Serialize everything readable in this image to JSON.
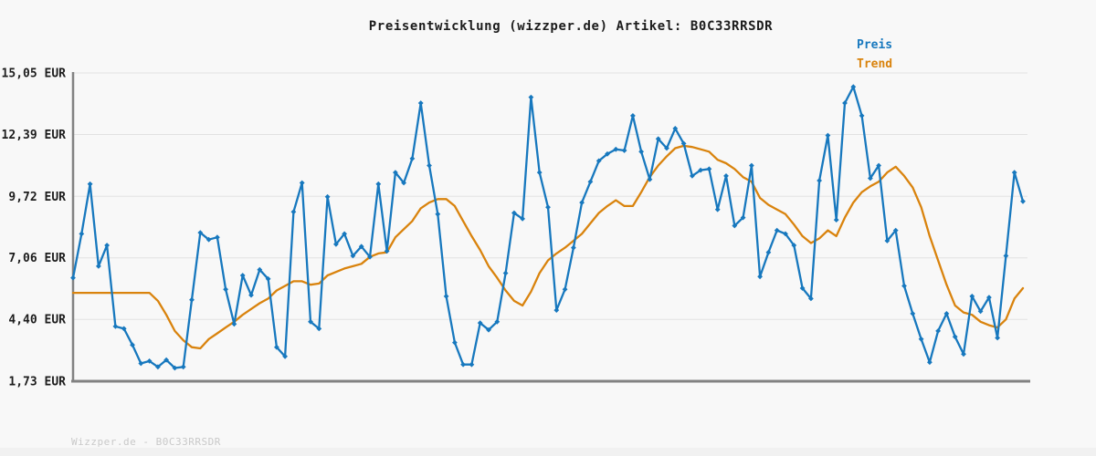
{
  "title": "Preisentwicklung (wizzper.de) Artikel: B0C33RRSDR",
  "legend": {
    "preis_label": "Preis",
    "trend_label": "Trend"
  },
  "footer": "Wizzper.de - B0C33RRSDR",
  "colors": {
    "background": "#f8f8f8",
    "preis": "#1778be",
    "trend": "#d9830d",
    "grid": "#e2e2e2",
    "axis": "#828282",
    "title_text": "#1c1c1c",
    "tick_text": "#1c1c1c",
    "footer_text": "#c9c9c9"
  },
  "chart_data": {
    "type": "line",
    "title": "Preisentwicklung (wizzper.de) Artikel: B0C33RRSDR",
    "xlabel": "",
    "ylabel": "EUR",
    "ylim": [
      1.73,
      15.05
    ],
    "grid": "horizontal",
    "legend_position": "top-right",
    "x_tick_labels": [],
    "y_ticks": [
      "15,05 EUR",
      "12,39 EUR",
      "9,72 EUR",
      "7,06 EUR",
      "4,40 EUR",
      "1,73 EUR"
    ],
    "y_tick_values": [
      15.05,
      12.39,
      9.72,
      7.06,
      4.4,
      1.73
    ],
    "series": [
      {
        "name": "Preis",
        "color": "#1778be",
        "marker": "diamond",
        "values": [
          6.2,
          8.1,
          10.25,
          6.7,
          7.6,
          4.1,
          4.0,
          3.3,
          2.5,
          2.6,
          2.35,
          2.65,
          2.3,
          2.35,
          5.25,
          8.15,
          7.85,
          7.95,
          5.7,
          4.2,
          6.3,
          5.45,
          6.55,
          6.15,
          3.2,
          2.8,
          9.05,
          10.3,
          4.3,
          4.0,
          9.7,
          7.65,
          8.1,
          7.15,
          7.55,
          7.1,
          10.25,
          7.35,
          10.75,
          10.3,
          11.35,
          13.75,
          11.05,
          8.95,
          5.4,
          3.4,
          2.45,
          2.45,
          4.25,
          3.95,
          4.3,
          6.4,
          9.0,
          8.75,
          14.0,
          10.75,
          9.25,
          4.8,
          5.7,
          7.5,
          9.45,
          10.35,
          11.25,
          11.55,
          11.75,
          11.7,
          13.2,
          11.65,
          10.45,
          12.2,
          11.8,
          12.65,
          12.0,
          10.6,
          10.85,
          10.9,
          9.15,
          10.6,
          8.45,
          8.8,
          11.05,
          6.25,
          7.3,
          8.25,
          8.1,
          7.6,
          5.75,
          5.3,
          10.4,
          12.35,
          8.7,
          13.75,
          14.45,
          13.2,
          10.5,
          11.05,
          7.8,
          8.25,
          5.85,
          4.65,
          3.55,
          2.55,
          3.9,
          4.65,
          3.65,
          2.9,
          5.4,
          4.75,
          5.35,
          3.6,
          7.15,
          10.75,
          9.5
        ]
      },
      {
        "name": "Trend",
        "color": "#d9830d",
        "marker": "none",
        "values": [
          5.55,
          5.55,
          5.55,
          5.55,
          5.55,
          5.55,
          5.55,
          5.55,
          5.55,
          5.55,
          5.2,
          4.6,
          3.9,
          3.5,
          3.2,
          3.15,
          3.55,
          3.8,
          4.05,
          4.3,
          4.6,
          4.85,
          5.1,
          5.3,
          5.65,
          5.85,
          6.05,
          6.05,
          5.9,
          5.95,
          6.3,
          6.45,
          6.6,
          6.7,
          6.8,
          7.1,
          7.25,
          7.3,
          7.95,
          8.3,
          8.65,
          9.2,
          9.45,
          9.6,
          9.6,
          9.3,
          8.65,
          8.0,
          7.4,
          6.7,
          6.2,
          5.65,
          5.2,
          5.0,
          5.6,
          6.4,
          6.95,
          7.25,
          7.5,
          7.8,
          8.1,
          8.55,
          9.0,
          9.3,
          9.55,
          9.3,
          9.3,
          9.9,
          10.55,
          11.05,
          11.45,
          11.8,
          11.9,
          11.85,
          11.75,
          11.65,
          11.3,
          11.15,
          10.9,
          10.55,
          10.35,
          9.65,
          9.35,
          9.15,
          8.95,
          8.5,
          8.0,
          7.7,
          7.9,
          8.25,
          8.0,
          8.8,
          9.45,
          9.9,
          10.15,
          10.35,
          10.75,
          11.0,
          10.6,
          10.1,
          9.25,
          8.0,
          6.95,
          5.9,
          5.0,
          4.7,
          4.6,
          4.3,
          4.15,
          4.05,
          4.4,
          5.3,
          5.75
        ]
      }
    ]
  }
}
